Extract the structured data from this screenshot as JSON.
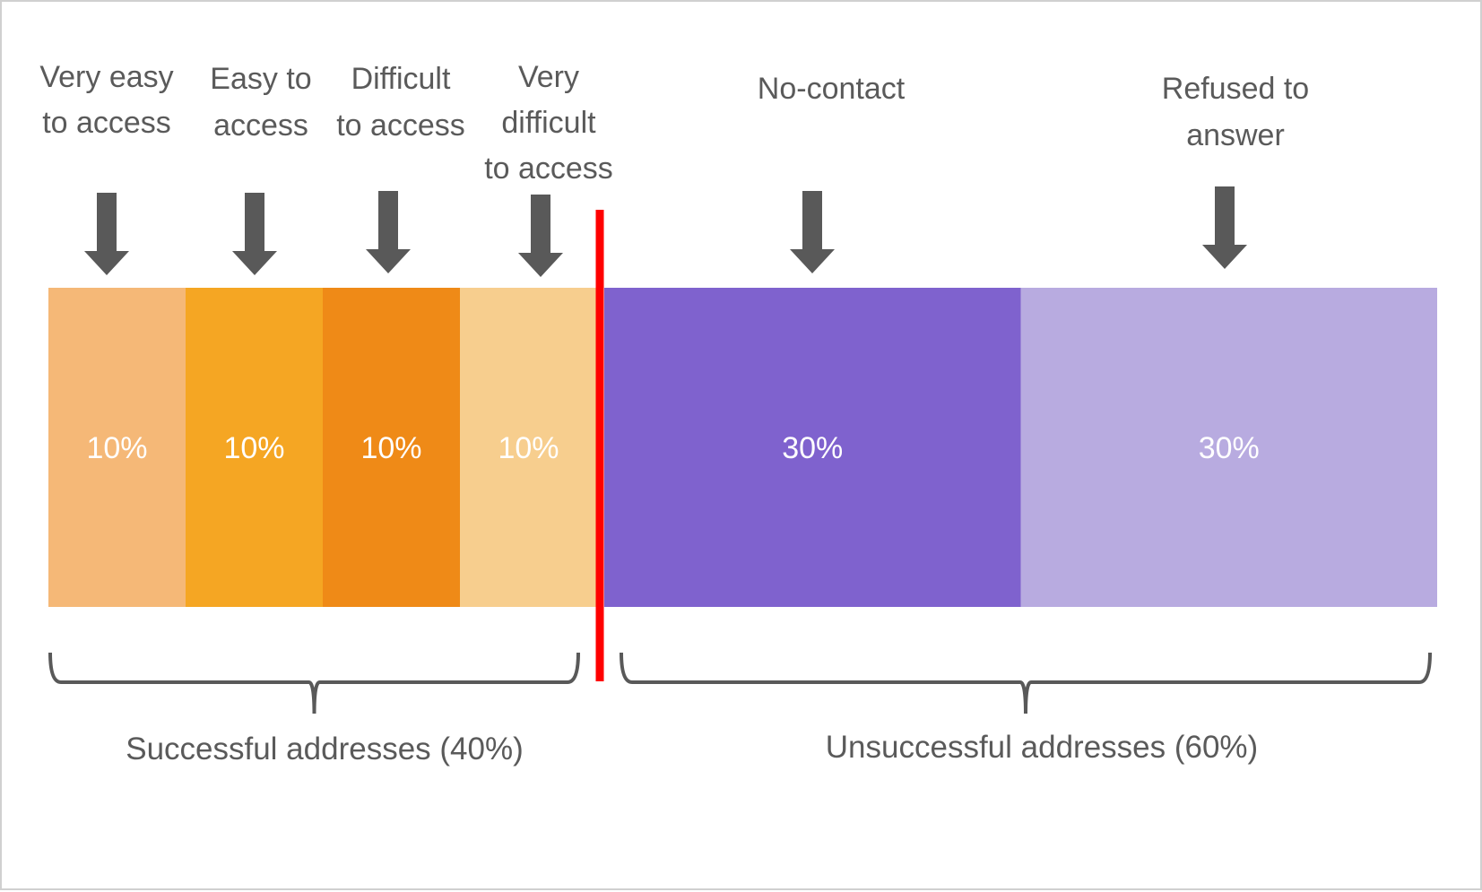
{
  "segments": [
    {
      "label_lines": [
        "Very easy",
        "to access"
      ],
      "percent": 10,
      "percent_label": "10%",
      "color": "#F5B877"
    },
    {
      "label_lines": [
        "Easy to",
        "access"
      ],
      "percent": 10,
      "percent_label": "10%",
      "color": "#F5A623"
    },
    {
      "label_lines": [
        "Difficult",
        "to access"
      ],
      "percent": 10,
      "percent_label": "10%",
      "color": "#EF8A17"
    },
    {
      "label_lines": [
        "Very",
        "difficult",
        "to access"
      ],
      "percent": 10,
      "percent_label": "10%",
      "color": "#F7CE8E"
    },
    {
      "label_lines": [
        "No-contact"
      ],
      "percent": 30,
      "percent_label": "30%",
      "color": "#7F62CE"
    },
    {
      "label_lines": [
        "Refused to",
        "answer"
      ],
      "percent": 30,
      "percent_label": "30%",
      "color": "#B8ABE0"
    }
  ],
  "groups": [
    {
      "label": "Successful addresses (40%)",
      "percent": 40,
      "segment_count": 4
    },
    {
      "label": "Unsuccessful addresses (60%)",
      "percent": 60,
      "segment_count": 2
    }
  ],
  "colors": {
    "arrow": "#595959",
    "divider": "#FF0000",
    "brace": "#595959",
    "label_text": "#5a5a5a",
    "percent_text": "#ffffff"
  },
  "icons": {
    "arrow": "down-arrow-icon",
    "brace": "curly-brace-icon"
  }
}
